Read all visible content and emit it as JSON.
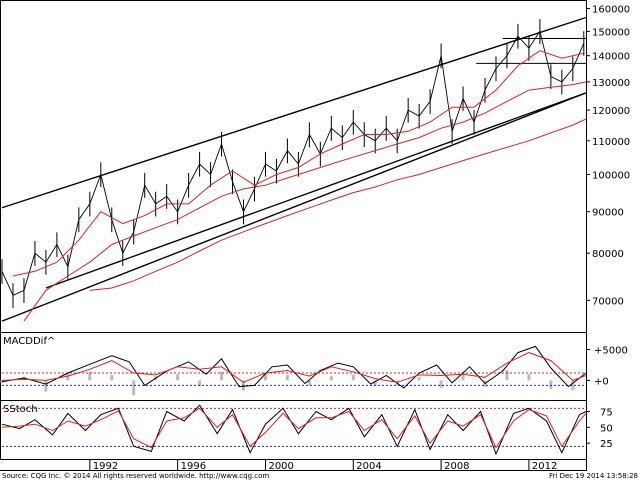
{
  "footer": {
    "copyright": "Source: CQG Inc. © 2014 All rights reserved worldwide. http://www.cqg.com",
    "timestamp": "Fri Dec 19 2014 13:58:28"
  },
  "colors": {
    "price": "#000000",
    "moving_average": "#e02020",
    "channel": "#000000",
    "reference_line_red": "#e02020",
    "reference_line_blue": "#2020d0",
    "histogram": "#bbbbbb"
  },
  "chart_data": [
    {
      "type": "line",
      "panel": "price",
      "title": "",
      "xlabel": "",
      "ylabel": "",
      "x_ticks": [
        "1992",
        "1996",
        "2000",
        "2004",
        "2008",
        "2012"
      ],
      "x_range": [
        1988.0,
        2014.6
      ],
      "y_scale": "log",
      "y_ticks": [
        70000,
        80000,
        90000,
        100000,
        110000,
        120000,
        130000,
        140000,
        150000,
        160000
      ],
      "y_range": [
        64000,
        163000
      ],
      "series": [
        {
          "style": "bars",
          "x": [
            1988.0,
            1988.5,
            1989.0,
            1989.5,
            1990.0,
            1990.5,
            1991.0,
            1991.5,
            1992.0,
            1992.5,
            1993.0,
            1993.5,
            1994.0,
            1994.5,
            1995.0,
            1995.5,
            1996.0,
            1996.5,
            1997.0,
            1997.5,
            1998.0,
            1998.5,
            1999.0,
            1999.5,
            2000.0,
            2000.5,
            2001.0,
            2001.5,
            2002.0,
            2002.5,
            2003.0,
            2003.5,
            2004.0,
            2004.5,
            2005.0,
            2005.5,
            2006.0,
            2006.5,
            2007.0,
            2007.5,
            2008.0,
            2008.5,
            2009.0,
            2009.5,
            2010.0,
            2010.5,
            2011.0,
            2011.5,
            2012.0,
            2012.5,
            2013.0,
            2013.5,
            2014.0,
            2014.5
          ],
          "y": [
            76000,
            71000,
            72000,
            80000,
            78000,
            82000,
            77000,
            88000,
            92000,
            100000,
            88000,
            80000,
            85000,
            97000,
            92000,
            94000,
            90000,
            97000,
            103000,
            100000,
            109000,
            98000,
            90000,
            96000,
            103000,
            101000,
            107000,
            103000,
            112000,
            106000,
            114000,
            111000,
            116000,
            112000,
            110000,
            114000,
            110000,
            120000,
            118000,
            123000,
            140000,
            113000,
            124000,
            116000,
            127000,
            135000,
            140000,
            148000,
            143000,
            150000,
            132000,
            130000,
            135000,
            145000
          ]
        },
        {
          "style": "line",
          "x": [
            1988.5,
            1989.5,
            1990.5,
            1991.5,
            1992.5,
            1993.5,
            1994.5,
            1995.5,
            1996.5,
            1997.5,
            1998.5,
            1999.5,
            2000.5,
            2001.5,
            2002.5,
            2003.5,
            2004.5,
            2005.5,
            2006.5,
            2007.5,
            2008.5,
            2009.5,
            2010.5,
            2011.5,
            2012.5,
            2013.5,
            2014.5
          ],
          "y": [
            75000,
            76000,
            78000,
            83000,
            90000,
            87000,
            89000,
            92000,
            92000,
            97000,
            101000,
            97000,
            100000,
            102000,
            106000,
            109000,
            112000,
            112000,
            113000,
            116000,
            121000,
            121000,
            127000,
            136000,
            142000,
            139000,
            141000
          ]
        },
        {
          "style": "line",
          "x": [
            1989.0,
            1990.0,
            1991.0,
            1992.0,
            1993.0,
            1994.0,
            1995.0,
            1996.0,
            1997.0,
            1998.0,
            1999.0,
            2000.0,
            2001.0,
            2002.0,
            2003.0,
            2004.0,
            2005.0,
            2006.0,
            2007.0,
            2008.0,
            2009.0,
            2010.0,
            2011.0,
            2012.0,
            2013.0,
            2014.0,
            2014.6
          ],
          "y": [
            66000,
            72000,
            75000,
            78000,
            82000,
            84000,
            86000,
            88000,
            91000,
            94000,
            96000,
            97000,
            99000,
            101000,
            103000,
            105000,
            107000,
            109000,
            111000,
            114000,
            116000,
            119000,
            123000,
            127000,
            128000,
            129000,
            130000
          ]
        },
        {
          "style": "line",
          "x": [
            1992.0,
            1993.0,
            1994.0,
            1995.0,
            1996.0,
            1997.0,
            1998.0,
            1999.0,
            2000.0,
            2001.0,
            2002.0,
            2003.0,
            2004.0,
            2005.0,
            2006.0,
            2007.0,
            2008.0,
            2009.0,
            2010.0,
            2011.0,
            2012.0,
            2013.0,
            2014.0,
            2014.6
          ],
          "y": [
            72000,
            72500,
            74000,
            76000,
            78000,
            80500,
            83000,
            85000,
            87000,
            89000,
            91000,
            93000,
            95000,
            96500,
            98500,
            100000,
            102000,
            104000,
            106000,
            108000,
            110000,
            112500,
            115000,
            117000
          ]
        }
      ],
      "channel_lines": [
        {
          "x": [
            1988.0,
            2014.6
          ],
          "y": [
            91000,
            156000
          ]
        },
        {
          "x": [
            1988.0,
            2014.6
          ],
          "y": [
            66000,
            126000
          ]
        },
        {
          "x": [
            1990.0,
            2014.6
          ],
          "y": [
            72500,
            126000
          ]
        }
      ],
      "horizontal_segments": [
        {
          "x": [
            2010.8,
            2014.6
          ],
          "y": 147000
        },
        {
          "x": [
            2009.6,
            2014.6
          ],
          "y": 137000
        }
      ]
    },
    {
      "type": "line",
      "panel": "macd",
      "title": "MACDDif^",
      "y_ticks": [
        {
          "label": "+5000",
          "value": 5000
        },
        {
          "label": "+0",
          "value": 0
        }
      ],
      "y_range": [
        -3000,
        7500
      ],
      "reference_lines": [
        {
          "value": 1200,
          "color": "red"
        },
        {
          "value": -800,
          "color": "blue"
        }
      ],
      "series": [
        {
          "style": "line",
          "x": [
            1988.0,
            1989.0,
            1990.0,
            1991.0,
            1992.0,
            1993.0,
            1993.8,
            1994.5,
            1995.5,
            1996.5,
            1997.3,
            1998.0,
            1998.8,
            1999.5,
            2000.3,
            2001.0,
            2001.8,
            2002.5,
            2003.3,
            2004.0,
            2004.8,
            2005.5,
            2006.3,
            2007.0,
            2007.8,
            2008.5,
            2009.3,
            2010.0,
            2010.8,
            2011.5,
            2012.3,
            2013.0,
            2013.8,
            2014.6
          ],
          "y": [
            -200,
            400,
            -600,
            1200,
            2600,
            4000,
            3000,
            -800,
            1500,
            3000,
            1000,
            3500,
            -1000,
            -800,
            2200,
            2500,
            -500,
            1600,
            2800,
            2200,
            -600,
            800,
            -1200,
            1200,
            2500,
            -400,
            2200,
            -500,
            1500,
            4500,
            5500,
            2000,
            -1000,
            1200
          ]
        },
        {
          "style": "line",
          "x": [
            1988.0,
            1989.0,
            1990.0,
            1991.0,
            1992.0,
            1993.0,
            1994.0,
            1995.0,
            1996.0,
            1997.0,
            1998.0,
            1999.0,
            2000.0,
            2001.0,
            2002.0,
            2003.0,
            2004.0,
            2005.0,
            2006.0,
            2007.0,
            2008.0,
            2009.0,
            2010.0,
            2011.0,
            2012.0,
            2013.0,
            2014.0,
            2014.6
          ],
          "y": [
            0,
            200,
            0,
            700,
            1800,
            3200,
            1200,
            900,
            2200,
            1800,
            2200,
            -300,
            1200,
            1600,
            700,
            2200,
            1400,
            300,
            -300,
            900,
            800,
            1000,
            500,
            2800,
            4500,
            3200,
            0,
            800
          ]
        }
      ],
      "histogram": {
        "x": [
          1988.0,
          1989.0,
          1990.0,
          1991.0,
          1992.0,
          1993.0,
          1994.0,
          1995.0,
          1996.0,
          1997.0,
          1998.0,
          1999.0,
          2000.0,
          2001.0,
          2002.0,
          2003.0,
          2004.0,
          2005.0,
          2006.0,
          2007.0,
          2008.0,
          2009.0,
          2010.0,
          2011.0,
          2012.0,
          2013.0,
          2014.0
        ],
        "y": [
          -400,
          600,
          -1800,
          1100,
          1400,
          900,
          -2400,
          700,
          1000,
          -900,
          1400,
          -1600,
          1200,
          900,
          -800,
          700,
          900,
          -900,
          -800,
          500,
          -1200,
          1300,
          -1100,
          1700,
          1000,
          -1400,
          -1600
        ]
      }
    },
    {
      "type": "line",
      "panel": "stochastic",
      "title": "SStoch",
      "y_ticks": [
        75,
        50,
        25
      ],
      "y_range": [
        0,
        90
      ],
      "reference_lines": [
        {
          "value": 80,
          "color": "red"
        },
        {
          "value": 20,
          "color": "blue"
        }
      ],
      "series": [
        {
          "style": "line",
          "x": [
            1988.0,
            1988.8,
            1989.5,
            1990.3,
            1991.0,
            1991.8,
            1992.5,
            1993.3,
            1994.0,
            1994.8,
            1995.5,
            1996.3,
            1997.0,
            1997.8,
            1998.5,
            1999.3,
            2000.0,
            2000.8,
            2001.5,
            2002.3,
            2003.0,
            2003.8,
            2004.5,
            2005.3,
            2006.0,
            2006.8,
            2007.5,
            2008.3,
            2009.0,
            2009.8,
            2010.5,
            2011.3,
            2012.0,
            2012.8,
            2013.5,
            2014.3,
            2014.6
          ],
          "y": [
            55,
            48,
            62,
            38,
            72,
            45,
            70,
            80,
            20,
            12,
            75,
            60,
            85,
            40,
            78,
            10,
            55,
            80,
            40,
            75,
            62,
            80,
            35,
            70,
            20,
            78,
            15,
            70,
            45,
            75,
            8,
            72,
            80,
            60,
            10,
            70,
            75
          ]
        },
        {
          "style": "line",
          "x": [
            1988.0,
            1988.8,
            1989.5,
            1990.3,
            1991.0,
            1991.8,
            1992.5,
            1993.3,
            1994.0,
            1994.8,
            1995.5,
            1996.3,
            1997.0,
            1997.8,
            1998.5,
            1999.3,
            2000.0,
            2000.8,
            2001.5,
            2002.3,
            2003.0,
            2003.8,
            2004.5,
            2005.3,
            2006.0,
            2006.8,
            2007.5,
            2008.3,
            2009.0,
            2009.8,
            2010.5,
            2011.3,
            2012.0,
            2012.8,
            2013.5,
            2014.3,
            2014.6
          ],
          "y": [
            50,
            52,
            55,
            45,
            60,
            52,
            62,
            76,
            32,
            18,
            60,
            65,
            80,
            50,
            70,
            20,
            42,
            72,
            48,
            65,
            65,
            75,
            45,
            62,
            32,
            68,
            25,
            60,
            52,
            70,
            18,
            60,
            78,
            68,
            20,
            60,
            72
          ]
        }
      ]
    }
  ]
}
